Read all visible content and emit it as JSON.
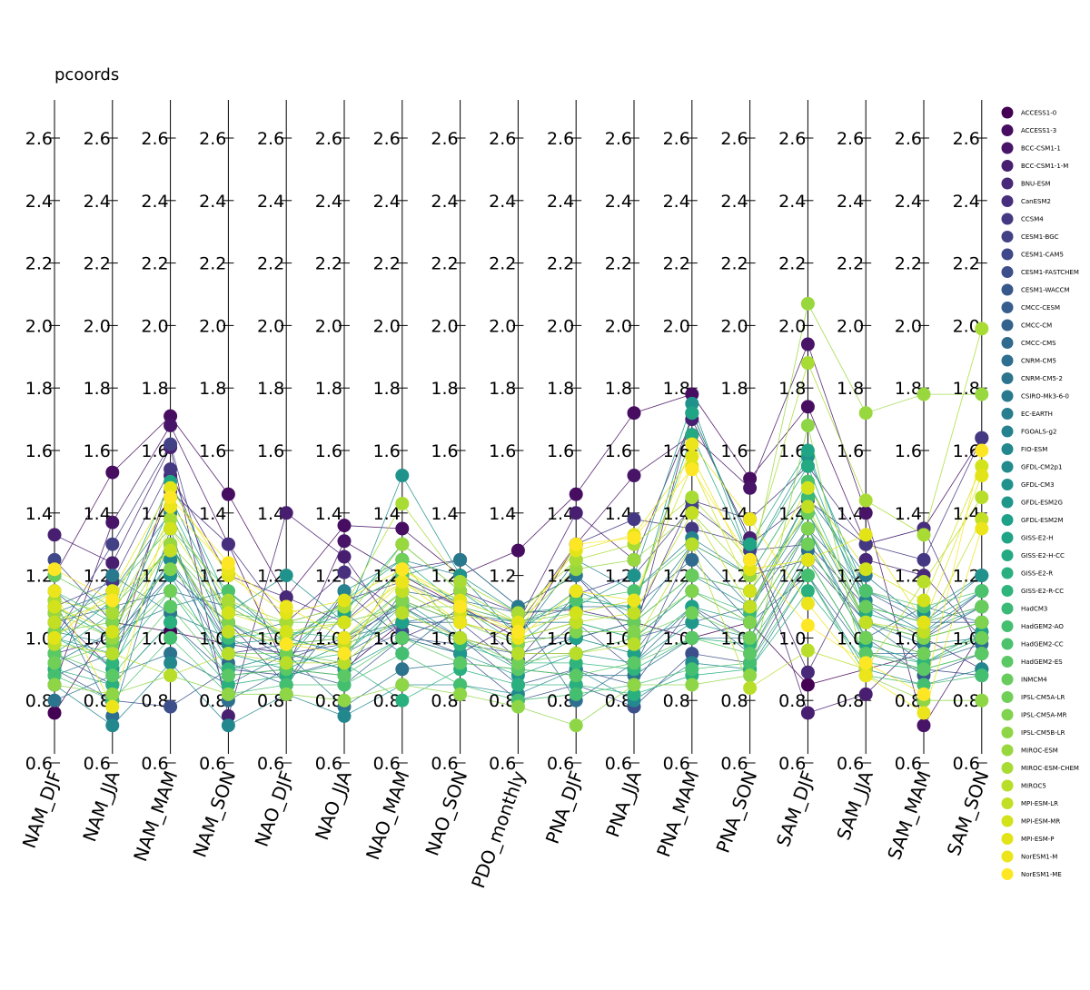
{
  "title": "pcoords",
  "chart_data": {
    "type": "parallel_coordinates",
    "title": "pcoords",
    "axes": [
      "NAM_DJF",
      "NAM_JJA",
      "NAM_MAM",
      "NAM_SON",
      "NAO_DJF",
      "NAO_JJA",
      "NAO_MAM",
      "NAO_SON",
      "PDO_monthly",
      "PNA_DJF",
      "PNA_JJA",
      "PNA_MAM",
      "PNA_SON",
      "SAM_DJF",
      "SAM_JJA",
      "SAM_MAM",
      "SAM_SON"
    ],
    "ylim": [
      0.6,
      2.6
    ],
    "ticks": [
      "0.6",
      "0.8",
      "1.0",
      "1.2",
      "1.4",
      "1.6",
      "1.8",
      "2.0",
      "2.2",
      "2.4",
      "2.6"
    ],
    "legend_position": "right",
    "colors": [
      "#440154",
      "#450559",
      "#46085c",
      "#470d60",
      "#471063",
      "#481467",
      "#481769",
      "#481b6d",
      "#481f70",
      "#482173",
      "#482576",
      "#482878",
      "#472c7a",
      "#472f7d",
      "#46327e",
      "#453781",
      "#453882",
      "#443b84",
      "#433e85",
      "#424186",
      "#404588",
      "#3f4889",
      "#3e4989",
      "#3d4d8a",
      "#3c4f8a",
      "#3b528b",
      "#39558c",
      "#38588c",
      "#375b8d",
      "#365d8d",
      "#35608d",
      "#34618d",
      "#33638d",
      "#32658e",
      "#31688e",
      "#306a8e",
      "#2f6c8e",
      "#2e6e8e",
      "#2d708e",
      "#2c728e",
      "#2c738e",
      "#2b758e",
      "#2a778e",
      "#29798e",
      "#297b8e",
      "#287d8e",
      "#277f8e",
      "#26818e",
      "#26828e",
      "#25848e",
      "#24868e",
      "#23888e",
      "#23898e",
      "#228b8d",
      "#218d8d",
      "#218f8d",
      "#20928c",
      "#1f948c",
      "#1f968b",
      "#1f988b",
      "#1f9a8a",
      "#1e9c89",
      "#1fa088",
      "#1fa287",
      "#20a486",
      "#21a685",
      "#22a785",
      "#24aa83",
      "#25ac82",
      "#28ae80",
      "#2ab07f",
      "#2db27d",
      "#2fb47c",
      "#32b67a",
      "#35b779",
      "#3ab977",
      "#3dbc74",
      "#40bd72",
      "#44bf70",
      "#48c16e",
      "#4cc26c",
      "#50c46a",
      "#56c667",
      "#5ac864",
      "#5ec962",
      "#62cb5f",
      "#67cc5c",
      "#6ccd5a",
      "#70cf57",
      "#75d054",
      "#7ad151",
      "#7fd34e",
      "#84d44b",
      "#89d548",
      "#8ed645",
      "#93d741",
      "#98d83e",
      "#9dd93b",
      "#a2da37",
      "#a8db34",
      "#addc30",
      "#b2dd2d",
      "#b8de29",
      "#bddf26",
      "#c2df23",
      "#c8e020",
      "#cde11d",
      "#d2e21b",
      "#d8e219",
      "#dde318",
      "#e2e418",
      "#e7e419",
      "#ece51b",
      "#f1e51d",
      "#f6e620",
      "#fde725"
    ],
    "series": [
      {
        "name": "ACCESS1-0",
        "values": [
          0.76,
          1.05,
          1.02,
          0.98,
          0.95,
          0.9,
          1.05,
          1.0,
          0.95,
          1.0,
          1.05,
          1.0,
          1.05,
          0.85,
          0.9,
          0.95,
          1.0
        ]
      },
      {
        "name": "ACCESS1-3",
        "values": [
          1.2,
          1.53,
          1.71,
          1.46,
          1.13,
          1.36,
          1.35,
          1.2,
          1.28,
          1.46,
          1.72,
          1.78,
          1.51,
          1.74,
          1.3,
          1.35,
          1.64
        ]
      },
      {
        "name": "BCC-CSM1-1",
        "values": [
          0.85,
          1.37,
          1.68,
          1.3,
          0.9,
          1.31,
          1.2,
          1.1,
          1.0,
          1.3,
          1.52,
          1.65,
          1.48,
          1.94,
          1.4,
          0.72,
          1.02
        ]
      },
      {
        "name": "BCC-CSM1-1-M",
        "values": [
          1.33,
          1.24,
          1.61,
          0.75,
          1.4,
          1.26,
          1.0,
          0.95,
          1.05,
          1.4,
          1.25,
          1.7,
          1.32,
          0.76,
          0.82,
          1.0,
          0.9
        ]
      },
      {
        "name": "BNU-ESM",
        "values": [
          1.08,
          0.9,
          1.52,
          1.2,
          1.13,
          1.05,
          1.22,
          1.25,
          1.1,
          1.2,
          1.0,
          1.72,
          1.3,
          0.89,
          1.25,
          1.2,
          1.0
        ]
      },
      {
        "name": "CanESM2",
        "values": [
          0.95,
          1.0,
          1.47,
          1.3,
          1.05,
          1.21,
          1.08,
          1.15,
          1.08,
          1.09,
          1.05,
          1.44,
          1.38,
          1.55,
          1.3,
          1.35,
          0.95
        ]
      },
      {
        "name": "CCSM4",
        "values": [
          1.1,
          1.18,
          1.54,
          1.05,
          0.85,
          1.15,
          1.0,
          1.08,
          1.04,
          1.3,
          1.38,
          1.35,
          1.3,
          1.44,
          1.3,
          1.25,
          1.64
        ]
      },
      {
        "name": "CESM1-BGC",
        "values": [
          1.0,
          1.3,
          1.62,
          0.95,
          0.98,
          1.12,
          1.18,
          1.1,
          0.93,
          1.14,
          1.2,
          1.42,
          1.28,
          1.3,
          1.1,
          1.05,
          1.1
        ]
      },
      {
        "name": "CESM1-CAM5",
        "values": [
          1.25,
          1.05,
          1.3,
          0.98,
          0.95,
          0.98,
          1.12,
          1.05,
          0.9,
          1.05,
          0.9,
          1.3,
          1.2,
          1.25,
          1.05,
          1.0,
          1.15
        ]
      },
      {
        "name": "CESM1-FASTCHEM",
        "values": [
          0.9,
          0.8,
          0.78,
          0.9,
          0.88,
          0.93,
          1.02,
          0.95,
          0.8,
          0.85,
          0.78,
          0.95,
          0.92,
          1.25,
          0.95,
          0.9,
          0.88
        ]
      },
      {
        "name": "CESM1-WACCM",
        "values": [
          1.15,
          1.0,
          1.2,
          1.05,
          0.93,
          1.0,
          1.1,
          1.0,
          0.85,
          0.9,
          0.85,
          1.1,
          1.0,
          1.3,
          1.0,
          0.88,
          0.95
        ]
      },
      {
        "name": "CMCC-CESM",
        "values": [
          0.95,
          0.85,
          1.05,
          0.88,
          0.9,
          0.85,
          1.0,
          0.98,
          0.95,
          0.95,
          1.0,
          1.05,
          1.1,
          1.35,
          1.15,
          1.05,
          1.05
        ]
      },
      {
        "name": "CMCC-CM",
        "values": [
          1.05,
          1.1,
          1.15,
          1.1,
          1.0,
          0.95,
          1.05,
          1.05,
          1.0,
          1.0,
          0.95,
          1.2,
          1.15,
          1.4,
          1.1,
          1.0,
          1.1
        ]
      },
      {
        "name": "CMCC-CMS",
        "values": [
          0.88,
          0.95,
          1.25,
          0.92,
          0.85,
          1.08,
          0.95,
          1.1,
          1.05,
          1.1,
          1.1,
          1.25,
          1.05,
          1.2,
          0.95,
          0.95,
          1.0
        ]
      },
      {
        "name": "CNRM-CM5",
        "values": [
          1.12,
          0.75,
          1.35,
          0.8,
          0.9,
          0.88,
          1.15,
          1.12,
          1.08,
          0.8,
          0.92,
          1.1,
          0.95,
          1.28,
          1.05,
          0.92,
          0.98
        ]
      },
      {
        "name": "CNRM-CM5-2",
        "values": [
          0.8,
          0.88,
          0.95,
          0.85,
          0.95,
          0.78,
          0.9,
          0.92,
          0.9,
          0.88,
          0.88,
          1.0,
          1.0,
          1.35,
          1.0,
          1.1,
          1.05
        ]
      },
      {
        "name": "CSIRO-Mk3-6-0",
        "values": [
          1.0,
          1.2,
          1.08,
          1.0,
          1.05,
          1.1,
          1.2,
          1.25,
          1.1,
          1.2,
          1.05,
          1.3,
          1.1,
          1.45,
          1.2,
          1.05,
          1.2
        ]
      },
      {
        "name": "EC-EARTH",
        "values": [
          0.92,
          1.02,
          1.1,
          1.15,
          0.98,
          1.0,
          1.05,
          1.08,
          1.05,
          1.05,
          1.0,
          1.15,
          1.05,
          1.35,
          1.05,
          0.98,
          1.0
        ]
      },
      {
        "name": "FGOALS-g2",
        "values": [
          1.08,
          1.15,
          1.4,
          1.0,
          0.92,
          1.15,
          1.25,
          1.2,
          1.0,
          1.25,
          1.15,
          1.32,
          1.2,
          1.5,
          1.12,
          1.02,
          1.15
        ]
      },
      {
        "name": "FIO-ESM",
        "values": [
          0.85,
          0.72,
          0.92,
          0.72,
          0.82,
          0.75,
          0.85,
          0.85,
          0.82,
          0.9,
          0.8,
          0.92,
          0.9,
          1.2,
          0.9,
          0.85,
          0.9
        ]
      },
      {
        "name": "GFDL-CM2p1",
        "values": [
          1.02,
          0.98,
          1.25,
          0.98,
          1.0,
          0.95,
          1.12,
          1.0,
          0.95,
          1.0,
          1.05,
          1.2,
          1.1,
          1.4,
          1.05,
          1.0,
          1.05
        ]
      },
      {
        "name": "GFDL-CM3",
        "values": [
          0.98,
          1.12,
          1.45,
          1.08,
          1.2,
          1.05,
          1.52,
          1.2,
          1.08,
          1.1,
          1.2,
          1.75,
          1.25,
          1.58,
          1.15,
          1.08,
          1.2
        ]
      },
      {
        "name": "GFDL-ESM2G",
        "values": [
          1.0,
          0.95,
          1.2,
          0.9,
          0.95,
          0.9,
          1.0,
          0.95,
          0.88,
          0.95,
          0.92,
          1.05,
          1.0,
          1.3,
          1.0,
          0.95,
          1.0
        ]
      },
      {
        "name": "GFDL-ESM2M",
        "values": [
          1.05,
          0.9,
          1.3,
          0.95,
          0.9,
          0.98,
          1.05,
          1.0,
          0.9,
          1.0,
          0.95,
          1.1,
          1.05,
          1.35,
          0.98,
          0.92,
          1.02
        ]
      },
      {
        "name": "GISS-E2-H",
        "values": [
          0.95,
          1.08,
          1.5,
          1.12,
          1.0,
          1.08,
          1.3,
          1.15,
          1.02,
          1.15,
          1.08,
          1.72,
          1.3,
          1.6,
          1.1,
          1.05,
          1.15
        ]
      },
      {
        "name": "GISS-E2-H-CC",
        "values": [
          1.1,
          1.0,
          1.42,
          1.05,
          0.95,
          1.12,
          1.25,
          1.1,
          0.98,
          1.12,
          1.1,
          1.65,
          1.25,
          1.55,
          1.08,
          1.02,
          1.1
        ]
      },
      {
        "name": "GISS-E2-R",
        "values": [
          0.9,
          0.85,
          1.05,
          0.85,
          0.88,
          0.92,
          0.8,
          0.9,
          0.85,
          0.85,
          0.82,
          0.88,
          0.9,
          1.15,
          0.92,
          0.9,
          0.95
        ]
      },
      {
        "name": "GISS-E2-R-CC",
        "values": [
          1.0,
          0.92,
          1.15,
          0.9,
          0.92,
          0.95,
          1.1,
          0.98,
          0.92,
          0.92,
          0.9,
          1.0,
          0.98,
          1.25,
          0.95,
          0.92,
          1.0
        ]
      },
      {
        "name": "HadCM3",
        "values": [
          1.15,
          1.05,
          1.3,
          1.0,
          1.02,
          1.0,
          1.15,
          1.05,
          1.0,
          1.05,
          1.0,
          1.15,
          1.08,
          1.45,
          1.05,
          1.0,
          1.05
        ]
      },
      {
        "name": "HadGEM2-AO",
        "values": [
          0.88,
          0.8,
          1.0,
          0.82,
          0.85,
          0.85,
          0.95,
          0.85,
          0.8,
          0.82,
          0.85,
          0.9,
          0.92,
          1.2,
          0.88,
          0.85,
          0.88
        ]
      },
      {
        "name": "HadGEM2-CC",
        "values": [
          1.05,
          1.15,
          1.35,
          1.15,
          1.0,
          1.1,
          1.2,
          1.12,
          1.05,
          1.12,
          1.15,
          1.3,
          1.2,
          1.5,
          1.15,
          1.1,
          1.15
        ]
      },
      {
        "name": "HadGEM2-ES",
        "values": [
          0.95,
          0.88,
          1.1,
          0.88,
          0.9,
          0.88,
          1.0,
          0.92,
          0.9,
          0.88,
          0.92,
          1.0,
          0.95,
          1.25,
          0.95,
          0.9,
          0.95
        ]
      },
      {
        "name": "INMCM4",
        "values": [
          1.2,
          1.1,
          1.28,
          1.08,
          1.05,
          1.05,
          1.1,
          1.1,
          1.05,
          1.08,
          1.05,
          1.2,
          1.15,
          1.4,
          1.1,
          1.05,
          1.1
        ]
      },
      {
        "name": "IPSL-CM5A-LR",
        "values": [
          0.92,
          0.98,
          1.15,
          0.95,
          0.95,
          0.92,
          1.25,
          1.0,
          0.92,
          0.95,
          1.0,
          1.08,
          1.0,
          1.3,
          1.0,
          0.95,
          1.0
        ]
      },
      {
        "name": "IPSL-CM5A-MR",
        "values": [
          1.02,
          1.05,
          1.22,
          1.05,
          0.98,
          1.0,
          1.12,
          1.05,
          0.98,
          1.02,
          1.02,
          1.15,
          1.05,
          1.35,
          1.05,
          1.0,
          1.05
        ]
      },
      {
        "name": "IPSL-CM5B-LR",
        "values": [
          0.85,
          0.82,
          0.88,
          0.82,
          0.82,
          0.8,
          0.85,
          0.82,
          0.78,
          0.72,
          0.85,
          0.85,
          0.88,
          1.68,
          0.88,
          0.8,
          0.8
        ]
      },
      {
        "name": "MIROC-ESM",
        "values": [
          1.08,
          1.0,
          1.3,
          1.1,
          1.0,
          1.05,
          1.3,
          1.15,
          1.05,
          1.22,
          1.25,
          1.4,
          1.2,
          2.07,
          1.72,
          1.78,
          1.78
        ]
      },
      {
        "name": "MIROC-ESM-CHEM",
        "values": [
          1.12,
          1.08,
          1.38,
          1.12,
          1.05,
          1.1,
          1.43,
          1.18,
          1.08,
          1.25,
          1.3,
          1.45,
          1.25,
          1.88,
          1.44,
          1.33,
          1.99
        ]
      },
      {
        "name": "MIROC5",
        "values": [
          0.98,
          0.95,
          0.88,
          0.95,
          0.92,
          0.92,
          1.08,
          1.0,
          0.95,
          0.95,
          0.98,
          1.3,
          0.84,
          0.96,
          0.9,
          1.18,
          1.45
        ]
      },
      {
        "name": "MPI-ESM-LR",
        "values": [
          1.05,
          1.12,
          1.28,
          1.02,
          0.98,
          0.98,
          1.15,
          1.05,
          1.0,
          1.05,
          1.08,
          1.4,
          1.1,
          1.42,
          1.05,
          1.02,
          1.38
        ]
      },
      {
        "name": "MPI-ESM-MR",
        "values": [
          1.1,
          1.02,
          1.35,
          1.08,
          1.02,
          1.05,
          1.18,
          1.08,
          1.02,
          1.08,
          1.12,
          1.55,
          1.15,
          1.48,
          1.22,
          1.12,
          1.55
        ]
      },
      {
        "name": "MPI-ESM-P",
        "values": [
          1.0,
          1.15,
          1.48,
          1.2,
          1.08,
          1.12,
          1.22,
          1.12,
          1.05,
          1.28,
          1.33,
          1.58,
          1.22,
          1.25,
          1.33,
          1.05,
          1.52
        ]
      },
      {
        "name": "NorESM1-M",
        "values": [
          1.15,
          0.78,
          1.42,
          1.22,
          1.1,
          1.0,
          1.18,
          1.05,
          1.0,
          1.15,
          1.12,
          1.62,
          1.38,
          1.11,
          0.88,
          0.76,
          1.35
        ]
      },
      {
        "name": "NorESM1-ME",
        "values": [
          1.22,
          1.12,
          1.45,
          1.24,
          0.98,
          0.95,
          1.22,
          1.1,
          1.02,
          1.3,
          1.32,
          1.54,
          1.25,
          1.04,
          0.92,
          0.82,
          1.6
        ]
      }
    ]
  }
}
